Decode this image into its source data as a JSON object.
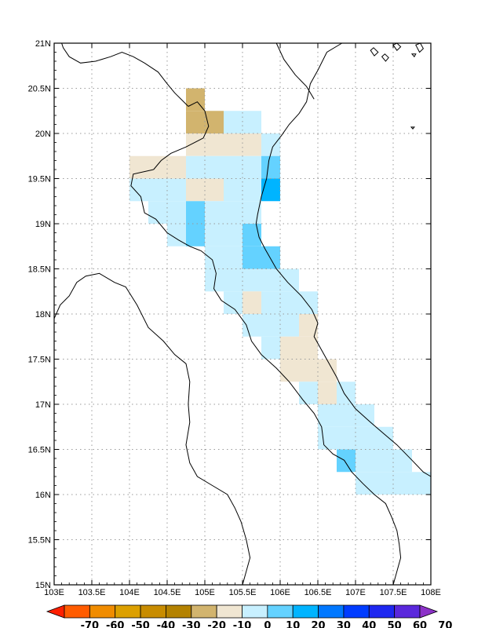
{
  "map": {
    "x_labels": [
      "103E",
      "103.5E",
      "104E",
      "104.5E",
      "105E",
      "105.5E",
      "106E",
      "106.5E",
      "107E",
      "107.5E",
      "108E"
    ],
    "y_labels": [
      "21N",
      "20.5N",
      "20N",
      "19.5N",
      "19N",
      "18.5N",
      "18N",
      "17.5N",
      "17N",
      "16.5N",
      "16N",
      "15.5N",
      "15N"
    ],
    "lon_range": [
      103,
      108
    ],
    "lat_range": [
      15,
      21
    ]
  },
  "colorbar": {
    "labels": [
      "-70",
      "-60",
      "-50",
      "-40",
      "-30",
      "-20",
      "-10",
      "0",
      "10",
      "20",
      "30",
      "40",
      "50",
      "60",
      "70"
    ],
    "colors": [
      "#ff1f00",
      "#ff5c00",
      "#f08c00",
      "#dca000",
      "#c88c00",
      "#b48200",
      "#d2b46e",
      "#f0e6d2",
      "#c8f0ff",
      "#64d2ff",
      "#00b4ff",
      "#0078ff",
      "#003cff",
      "#1e28f0",
      "#5a28dc",
      "#8c32c8"
    ]
  },
  "grid_cells": [
    {
      "lon": 104.875,
      "lat": 20.375,
      "color": "#d2b46e"
    },
    {
      "lon": 104.875,
      "lat": 20.125,
      "color": "#d2b46e"
    },
    {
      "lon": 105.125,
      "lat": 20.125,
      "color": "#d2b46e"
    },
    {
      "lon": 105.375,
      "lat": 20.125,
      "color": "#c8f0ff"
    },
    {
      "lon": 105.625,
      "lat": 20.125,
      "color": "#c8f0ff"
    },
    {
      "lon": 104.875,
      "lat": 19.875,
      "color": "#f0e6d2"
    },
    {
      "lon": 105.125,
      "lat": 19.875,
      "color": "#f0e6d2"
    },
    {
      "lon": 105.375,
      "lat": 19.875,
      "color": "#f0e6d2"
    },
    {
      "lon": 105.625,
      "lat": 19.875,
      "color": "#f0e6d2"
    },
    {
      "lon": 105.875,
      "lat": 19.875,
      "color": "#c8f0ff"
    },
    {
      "lon": 104.125,
      "lat": 19.625,
      "color": "#f0e6d2"
    },
    {
      "lon": 104.375,
      "lat": 19.625,
      "color": "#f0e6d2"
    },
    {
      "lon": 104.625,
      "lat": 19.625,
      "color": "#f0e6d2"
    },
    {
      "lon": 104.875,
      "lat": 19.625,
      "color": "#c8f0ff"
    },
    {
      "lon": 105.125,
      "lat": 19.625,
      "color": "#c8f0ff"
    },
    {
      "lon": 105.375,
      "lat": 19.625,
      "color": "#c8f0ff"
    },
    {
      "lon": 105.625,
      "lat": 19.625,
      "color": "#c8f0ff"
    },
    {
      "lon": 105.875,
      "lat": 19.625,
      "color": "#64d2ff"
    },
    {
      "lon": 104.125,
      "lat": 19.375,
      "color": "#c8f0ff"
    },
    {
      "lon": 104.375,
      "lat": 19.375,
      "color": "#c8f0ff"
    },
    {
      "lon": 104.625,
      "lat": 19.375,
      "color": "#c8f0ff"
    },
    {
      "lon": 104.875,
      "lat": 19.375,
      "color": "#f0e6d2"
    },
    {
      "lon": 105.125,
      "lat": 19.375,
      "color": "#f0e6d2"
    },
    {
      "lon": 105.375,
      "lat": 19.375,
      "color": "#c8f0ff"
    },
    {
      "lon": 105.625,
      "lat": 19.375,
      "color": "#c8f0ff"
    },
    {
      "lon": 105.875,
      "lat": 19.375,
      "color": "#00b4ff"
    },
    {
      "lon": 104.375,
      "lat": 19.125,
      "color": "#c8f0ff"
    },
    {
      "lon": 104.625,
      "lat": 19.125,
      "color": "#c8f0ff"
    },
    {
      "lon": 104.875,
      "lat": 19.125,
      "color": "#64d2ff"
    },
    {
      "lon": 105.125,
      "lat": 19.125,
      "color": "#c8f0ff"
    },
    {
      "lon": 105.375,
      "lat": 19.125,
      "color": "#c8f0ff"
    },
    {
      "lon": 105.625,
      "lat": 19.125,
      "color": "#c8f0ff"
    },
    {
      "lon": 104.625,
      "lat": 18.875,
      "color": "#c8f0ff"
    },
    {
      "lon": 104.875,
      "lat": 18.875,
      "color": "#64d2ff"
    },
    {
      "lon": 105.125,
      "lat": 18.875,
      "color": "#c8f0ff"
    },
    {
      "lon": 105.375,
      "lat": 18.875,
      "color": "#c8f0ff"
    },
    {
      "lon": 105.625,
      "lat": 18.875,
      "color": "#64d2ff"
    },
    {
      "lon": 105.125,
      "lat": 18.625,
      "color": "#c8f0ff"
    },
    {
      "lon": 105.375,
      "lat": 18.625,
      "color": "#c8f0ff"
    },
    {
      "lon": 105.625,
      "lat": 18.625,
      "color": "#64d2ff"
    },
    {
      "lon": 105.875,
      "lat": 18.625,
      "color": "#64d2ff"
    },
    {
      "lon": 105.125,
      "lat": 18.375,
      "color": "#c8f0ff"
    },
    {
      "lon": 105.375,
      "lat": 18.375,
      "color": "#c8f0ff"
    },
    {
      "lon": 105.625,
      "lat": 18.375,
      "color": "#c8f0ff"
    },
    {
      "lon": 105.875,
      "lat": 18.375,
      "color": "#c8f0ff"
    },
    {
      "lon": 106.125,
      "lat": 18.375,
      "color": "#c8f0ff"
    },
    {
      "lon": 105.375,
      "lat": 18.125,
      "color": "#c8f0ff"
    },
    {
      "lon": 105.625,
      "lat": 18.125,
      "color": "#f0e6d2"
    },
    {
      "lon": 105.875,
      "lat": 18.125,
      "color": "#c8f0ff"
    },
    {
      "lon": 106.125,
      "lat": 18.125,
      "color": "#c8f0ff"
    },
    {
      "lon": 106.375,
      "lat": 18.125,
      "color": "#c8f0ff"
    },
    {
      "lon": 105.625,
      "lat": 17.875,
      "color": "#c8f0ff"
    },
    {
      "lon": 105.875,
      "lat": 17.875,
      "color": "#c8f0ff"
    },
    {
      "lon": 106.125,
      "lat": 17.875,
      "color": "#c8f0ff"
    },
    {
      "lon": 106.375,
      "lat": 17.875,
      "color": "#f0e6d2"
    },
    {
      "lon": 105.875,
      "lat": 17.625,
      "color": "#c8f0ff"
    },
    {
      "lon": 106.125,
      "lat": 17.625,
      "color": "#f0e6d2"
    },
    {
      "lon": 106.375,
      "lat": 17.625,
      "color": "#f0e6d2"
    },
    {
      "lon": 106.125,
      "lat": 17.375,
      "color": "#f0e6d2"
    },
    {
      "lon": 106.375,
      "lat": 17.375,
      "color": "#f0e6d2"
    },
    {
      "lon": 106.625,
      "lat": 17.375,
      "color": "#f0e6d2"
    },
    {
      "lon": 106.375,
      "lat": 17.125,
      "color": "#c8f0ff"
    },
    {
      "lon": 106.625,
      "lat": 17.125,
      "color": "#f0e6d2"
    },
    {
      "lon": 106.875,
      "lat": 17.125,
      "color": "#c8f0ff"
    },
    {
      "lon": 106.625,
      "lat": 16.875,
      "color": "#c8f0ff"
    },
    {
      "lon": 106.875,
      "lat": 16.875,
      "color": "#c8f0ff"
    },
    {
      "lon": 107.125,
      "lat": 16.875,
      "color": "#c8f0ff"
    },
    {
      "lon": 106.625,
      "lat": 16.625,
      "color": "#c8f0ff"
    },
    {
      "lon": 106.875,
      "lat": 16.625,
      "color": "#c8f0ff"
    },
    {
      "lon": 107.125,
      "lat": 16.625,
      "color": "#c8f0ff"
    },
    {
      "lon": 107.375,
      "lat": 16.625,
      "color": "#c8f0ff"
    },
    {
      "lon": 106.875,
      "lat": 16.375,
      "color": "#64d2ff"
    },
    {
      "lon": 107.125,
      "lat": 16.375,
      "color": "#c8f0ff"
    },
    {
      "lon": 107.375,
      "lat": 16.375,
      "color": "#c8f0ff"
    },
    {
      "lon": 107.625,
      "lat": 16.375,
      "color": "#c8f0ff"
    },
    {
      "lon": 107.125,
      "lat": 16.125,
      "color": "#c8f0ff"
    },
    {
      "lon": 107.375,
      "lat": 16.125,
      "color": "#c8f0ff"
    },
    {
      "lon": 107.625,
      "lat": 16.125,
      "color": "#c8f0ff"
    },
    {
      "lon": 107.875,
      "lat": 16.125,
      "color": "#c8f0ff"
    }
  ],
  "coastline": [
    [
      106.82,
      21.0
    ],
    [
      106.62,
      20.9
    ],
    [
      106.5,
      20.7
    ],
    [
      106.4,
      20.55
    ],
    [
      106.35,
      20.35
    ],
    [
      106.25,
      20.22
    ],
    [
      106.12,
      20.1
    ],
    [
      106.02,
      19.98
    ],
    [
      105.9,
      19.85
    ],
    [
      105.85,
      19.7
    ],
    [
      105.82,
      19.5
    ],
    [
      105.75,
      19.3
    ],
    [
      105.7,
      19.1
    ],
    [
      105.68,
      19.0
    ],
    [
      105.72,
      18.85
    ],
    [
      105.8,
      18.72
    ],
    [
      105.95,
      18.5
    ],
    [
      106.1,
      18.35
    ],
    [
      106.28,
      18.2
    ],
    [
      106.42,
      18.05
    ],
    [
      106.5,
      17.9
    ],
    [
      106.45,
      17.75
    ],
    [
      106.55,
      17.6
    ],
    [
      106.65,
      17.45
    ],
    [
      106.75,
      17.3
    ],
    [
      106.85,
      17.12
    ],
    [
      107.0,
      16.95
    ],
    [
      107.2,
      16.8
    ],
    [
      107.38,
      16.67
    ],
    [
      107.55,
      16.55
    ],
    [
      107.75,
      16.38
    ],
    [
      107.9,
      16.25
    ],
    [
      108.0,
      16.2
    ]
  ],
  "borders": [
    [
      [
        104.32,
        19.6
      ],
      [
        104.05,
        19.55
      ],
      [
        104.02,
        19.42
      ],
      [
        104.15,
        19.3
      ],
      [
        104.2,
        19.12
      ],
      [
        104.35,
        19.05
      ],
      [
        104.5,
        18.9
      ],
      [
        104.65,
        18.82
      ],
      [
        104.8,
        18.75
      ],
      [
        104.95,
        18.7
      ],
      [
        105.1,
        18.6
      ],
      [
        105.15,
        18.45
      ],
      [
        105.12,
        18.28
      ],
      [
        105.22,
        18.15
      ],
      [
        105.4,
        18.05
      ],
      [
        105.55,
        17.88
      ],
      [
        105.62,
        17.7
      ],
      [
        105.75,
        17.55
      ],
      [
        105.95,
        17.4
      ],
      [
        106.12,
        17.25
      ],
      [
        106.3,
        17.05
      ],
      [
        106.45,
        16.9
      ],
      [
        106.55,
        16.75
      ],
      [
        106.58,
        16.55
      ],
      [
        106.7,
        16.45
      ],
      [
        106.85,
        16.38
      ],
      [
        106.95,
        16.25
      ],
      [
        107.1,
        16.12
      ],
      [
        107.25,
        16.0
      ],
      [
        107.4,
        15.9
      ],
      [
        107.48,
        15.75
      ],
      [
        107.55,
        15.6
      ],
      [
        107.58,
        15.45
      ],
      [
        107.6,
        15.3
      ],
      [
        107.55,
        15.15
      ],
      [
        107.5,
        15.0
      ]
    ],
    [
      [
        103.0,
        17.95
      ],
      [
        103.08,
        18.1
      ],
      [
        103.2,
        18.2
      ],
      [
        103.3,
        18.35
      ],
      [
        103.42,
        18.42
      ],
      [
        103.6,
        18.45
      ],
      [
        103.8,
        18.35
      ],
      [
        103.95,
        18.3
      ],
      [
        104.1,
        18.1
      ],
      [
        104.25,
        17.85
      ],
      [
        104.45,
        17.7
      ],
      [
        104.6,
        17.55
      ],
      [
        104.75,
        17.45
      ],
      [
        104.8,
        17.25
      ],
      [
        104.78,
        17.0
      ],
      [
        104.8,
        16.8
      ],
      [
        104.75,
        16.55
      ],
      [
        104.8,
        16.35
      ],
      [
        104.9,
        16.2
      ],
      [
        105.1,
        16.1
      ],
      [
        105.3,
        16.0
      ],
      [
        105.4,
        15.85
      ],
      [
        105.48,
        15.7
      ],
      [
        105.55,
        15.5
      ],
      [
        105.6,
        15.3
      ],
      [
        105.55,
        15.15
      ],
      [
        105.5,
        15.0
      ]
    ],
    [
      [
        104.78,
        20.3
      ],
      [
        104.6,
        20.45
      ],
      [
        104.5,
        20.55
      ],
      [
        104.38,
        20.68
      ],
      [
        104.2,
        20.78
      ],
      [
        104.05,
        20.85
      ],
      [
        103.9,
        20.9
      ],
      [
        103.75,
        20.85
      ],
      [
        103.55,
        20.8
      ],
      [
        103.35,
        20.78
      ],
      [
        103.2,
        20.85
      ],
      [
        103.12,
        20.95
      ],
      [
        103.1,
        21.0
      ]
    ],
    [
      [
        104.78,
        20.3
      ],
      [
        104.9,
        20.35
      ],
      [
        105.0,
        20.25
      ],
      [
        105.05,
        20.08
      ],
      [
        104.98,
        19.95
      ],
      [
        104.75,
        19.85
      ],
      [
        104.55,
        19.78
      ],
      [
        104.42,
        19.7
      ],
      [
        104.32,
        19.6
      ]
    ],
    [
      [
        105.95,
        21.0
      ],
      [
        106.05,
        20.82
      ],
      [
        106.2,
        20.65
      ],
      [
        106.35,
        20.52
      ],
      [
        106.45,
        20.38
      ]
    ]
  ],
  "islands": [
    [
      [
        107.5,
        20.98
      ],
      [
        107.55,
        20.92
      ],
      [
        107.6,
        20.96
      ],
      [
        107.55,
        21.0
      ]
    ],
    [
      [
        107.8,
        20.98
      ],
      [
        107.85,
        20.9
      ],
      [
        107.9,
        20.94
      ],
      [
        107.86,
        21.0
      ]
    ],
    [
      [
        107.2,
        20.92
      ],
      [
        107.25,
        20.86
      ],
      [
        107.3,
        20.9
      ],
      [
        107.24,
        20.95
      ]
    ],
    [
      [
        107.35,
        20.85
      ],
      [
        107.4,
        20.8
      ],
      [
        107.44,
        20.84
      ],
      [
        107.39,
        20.88
      ]
    ],
    [
      [
        107.75,
        20.88
      ],
      [
        107.78,
        20.85
      ],
      [
        107.8,
        20.88
      ]
    ],
    [
      [
        107.74,
        20.07
      ],
      [
        107.76,
        20.05
      ],
      [
        107.78,
        20.07
      ]
    ]
  ]
}
